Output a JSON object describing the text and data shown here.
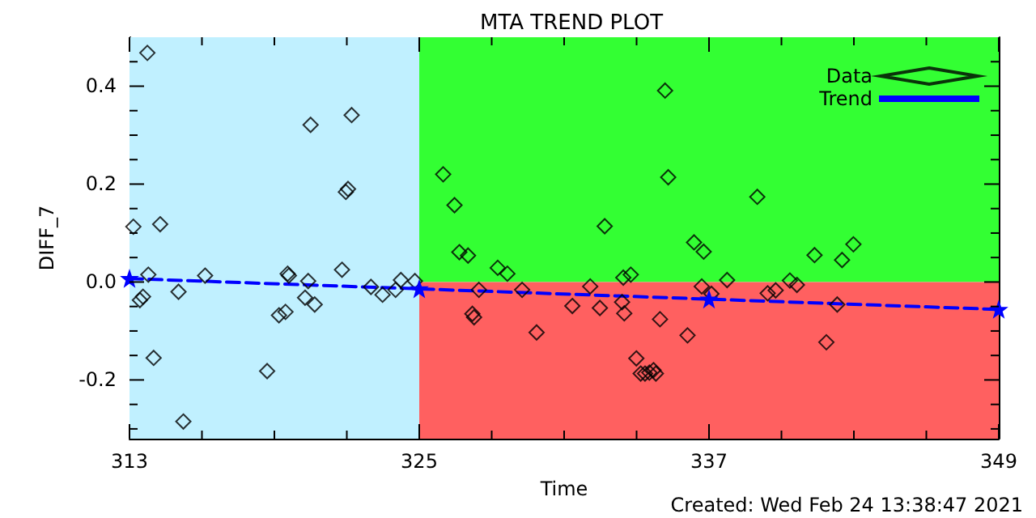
{
  "chart_data": {
    "type": "scatter",
    "title": "MTA TREND PLOT",
    "xlabel": "Time",
    "ylabel": "DIFF_7",
    "annotations": [
      "Created: Wed Feb 24 13:38:47 2021"
    ],
    "xlim": [
      313,
      349
    ],
    "ylim": [
      -0.32,
      0.5
    ],
    "xticks": [
      313,
      {
        "value": 316,
        "label": null
      },
      {
        "value": 319,
        "label": null
      },
      {
        "value": 322,
        "label": null
      },
      325,
      {
        "value": 328,
        "label": null
      },
      {
        "value": 331,
        "label": null
      },
      {
        "value": 334,
        "label": null
      },
      337,
      {
        "value": 340,
        "label": null
      },
      {
        "value": 343,
        "label": null
      },
      {
        "value": 346,
        "label": null
      },
      349
    ],
    "yticks": [
      {
        "value": -0.3,
        "label": null
      },
      {
        "value": -0.25,
        "label": null
      },
      -0.2,
      {
        "value": -0.15,
        "label": null
      },
      {
        "value": -0.1,
        "label": null
      },
      {
        "value": -0.05,
        "label": null
      },
      {
        "value": 0,
        "label": "0.0"
      },
      {
        "value": 0.05,
        "label": null
      },
      {
        "value": 0.1,
        "label": null
      },
      {
        "value": 0.15,
        "label": null
      },
      0.2,
      {
        "value": 0.25,
        "label": null
      },
      {
        "value": 0.3,
        "label": null
      },
      {
        "value": 0.35,
        "label": null
      },
      0.4,
      {
        "value": 0.45,
        "label": null
      }
    ],
    "bands": [
      {
        "axis": "y",
        "from": 0,
        "to": 0.5,
        "color": "#33ff33"
      },
      {
        "axis": "y",
        "from": -0.32,
        "to": 0,
        "color": "#ff6060"
      },
      {
        "axis": "x",
        "from": 313,
        "to": 325,
        "color": "#c0f0ff"
      }
    ],
    "grid": false,
    "legend": "top right",
    "series": [
      {
        "name": "Data",
        "color": "#000000",
        "marker": "diamond",
        "x": [
          313.74,
          313.16,
          314.27,
          313.78,
          313.56,
          313.43,
          314.0,
          315.03,
          315.23,
          316.13,
          318.7,
          319.19,
          319.46,
          319.55,
          319.6,
          320.27,
          320.4,
          320.67,
          320.5,
          322.2,
          322.05,
          321.96,
          321.8,
          323.0,
          323.48,
          324.02,
          324.24,
          324.82,
          325.99,
          326.46,
          326.66,
          327.02,
          327.2,
          327.27,
          327.47,
          328.25,
          328.65,
          329.26,
          329.86,
          331.34,
          332.08,
          332.48,
          332.68,
          333.49,
          333.45,
          333.76,
          333.4,
          335.18,
          335.31,
          333.99,
          334.17,
          334.35,
          334.53,
          334.7,
          334.8,
          334.97,
          336.11,
          336.38,
          336.78,
          336.7,
          337.1,
          337.75,
          339.0,
          339.43,
          339.76,
          340.35,
          340.64,
          341.37,
          341.86,
          342.31,
          342.51,
          342.98
        ],
        "values": [
          0.468,
          0.113,
          0.118,
          0.015,
          -0.03,
          -0.037,
          -0.155,
          -0.02,
          -0.285,
          0.013,
          -0.182,
          -0.068,
          -0.061,
          0.017,
          0.013,
          -0.032,
          0.002,
          -0.046,
          0.321,
          0.341,
          0.19,
          0.184,
          0.025,
          -0.01,
          -0.026,
          -0.016,
          0.004,
          0.002,
          0.22,
          0.157,
          0.061,
          0.054,
          -0.065,
          -0.072,
          -0.016,
          0.029,
          0.017,
          -0.016,
          -0.103,
          -0.049,
          -0.009,
          -0.053,
          0.114,
          -0.064,
          0.009,
          0.015,
          -0.041,
          0.391,
          0.214,
          -0.156,
          -0.187,
          -0.187,
          -0.185,
          -0.18,
          -0.187,
          -0.076,
          -0.109,
          0.081,
          0.062,
          -0.009,
          -0.024,
          0.004,
          0.174,
          -0.023,
          -0.017,
          0.003,
          -0.006,
          0.055,
          -0.123,
          -0.046,
          0.045,
          0.077
        ]
      },
      {
        "name": "Trend",
        "type": "line",
        "color": "#0000ff",
        "marker": "star",
        "line_style": "dashed",
        "x": [
          313,
          325,
          337,
          349
        ],
        "values": [
          0.007,
          -0.014,
          -0.035,
          -0.056
        ]
      }
    ]
  }
}
